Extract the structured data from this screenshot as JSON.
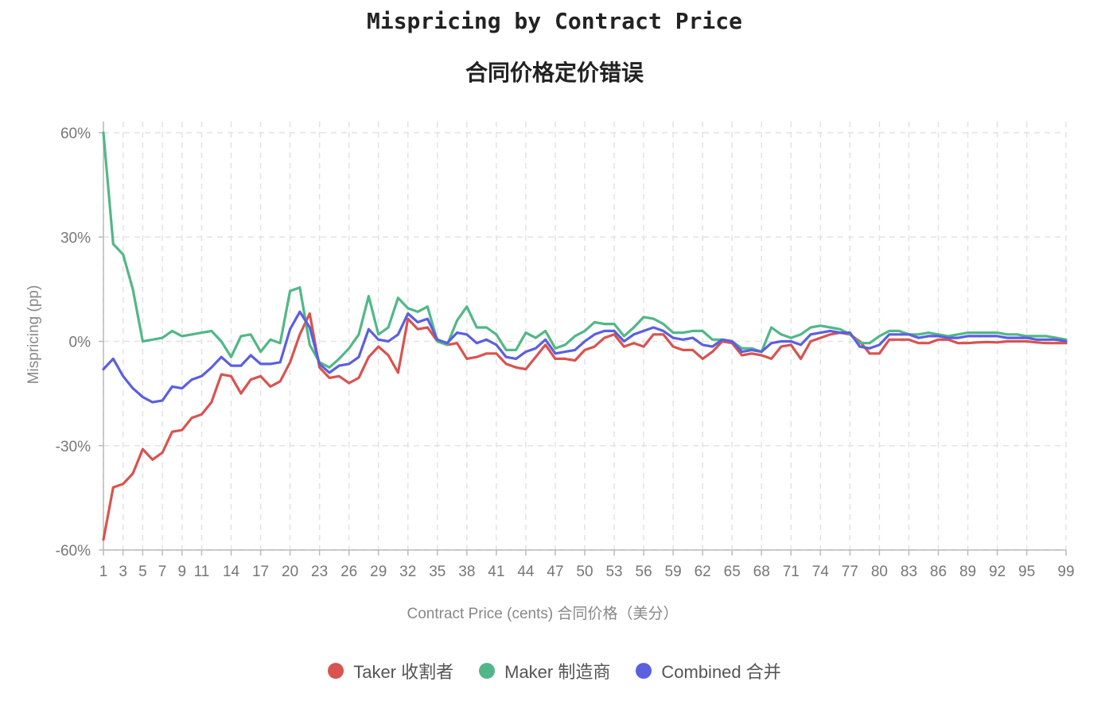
{
  "chart_data": {
    "type": "line",
    "title": "Mispricing by Contract Price",
    "subtitle": "合同价格定价错误",
    "xlabel": "Contract Price (cents) 合同价格（美分）",
    "ylabel": "Mispricing (pp)",
    "xlim": [
      1,
      99
    ],
    "ylim": [
      -60,
      60
    ],
    "yticks": [
      60,
      30,
      0,
      -30,
      -60
    ],
    "ytick_labels": [
      "60%",
      "30%",
      "0%",
      "-30%",
      "-60%"
    ],
    "xticks": [
      1,
      3,
      5,
      7,
      9,
      11,
      14,
      17,
      20,
      23,
      26,
      29,
      32,
      35,
      38,
      41,
      44,
      47,
      50,
      53,
      56,
      59,
      62,
      65,
      68,
      71,
      74,
      77,
      80,
      83,
      86,
      89,
      92,
      95,
      99
    ],
    "grid": true,
    "legend_position": "bottom-center",
    "series": [
      {
        "name": "Taker 收割者",
        "color": "#d9534f",
        "x": [
          1,
          2,
          3,
          4,
          5,
          6,
          7,
          8,
          9,
          10,
          11,
          12,
          13,
          14,
          15,
          16,
          17,
          18,
          19,
          20,
          21,
          22,
          23,
          24,
          25,
          26,
          27,
          28,
          29,
          30,
          31,
          32,
          33,
          34,
          35,
          36,
          37,
          38,
          39,
          40,
          41,
          42,
          43,
          44,
          45,
          46,
          47,
          48,
          49,
          50,
          51,
          52,
          53,
          54,
          55,
          56,
          57,
          58,
          59,
          60,
          61,
          62,
          63,
          64,
          65,
          66,
          67,
          68,
          69,
          70,
          71,
          72,
          73,
          74,
          75,
          76,
          77,
          78,
          79,
          80,
          81,
          82,
          83,
          84,
          85,
          86,
          87,
          88,
          89,
          90,
          91,
          92,
          93,
          94,
          95,
          96,
          97,
          98,
          99
        ],
        "values": [
          -57,
          -42,
          -41,
          -38,
          -31,
          -34,
          -32,
          -26,
          -25.5,
          -22,
          -21,
          -17.5,
          -9.5,
          -10,
          -15,
          -11,
          -10,
          -13,
          -11.5,
          -6,
          2,
          8,
          -7.5,
          -10.5,
          -10,
          -12,
          -10.5,
          -4.5,
          -1.5,
          -4,
          -9,
          6.5,
          3.5,
          4,
          0,
          -1,
          -0.5,
          -5,
          -4.5,
          -3.5,
          -3.5,
          -6.5,
          -7.5,
          -8,
          -4.5,
          -1,
          -5,
          -5,
          -5.5,
          -2.5,
          -1.5,
          1,
          2,
          -1.5,
          -0.5,
          -1.5,
          2,
          2,
          -1.5,
          -2.5,
          -2.5,
          -5,
          -3,
          0,
          -0.5,
          -4,
          -3.5,
          -4,
          -5,
          -1.5,
          -1,
          -5,
          0,
          1,
          2,
          2.5,
          2,
          0,
          -3.5,
          -3.5,
          0.5,
          0.5,
          0.5,
          -0.5,
          -0.5,
          0.5,
          0.5,
          -0.5,
          -0.5,
          -0.3,
          -0.2,
          -0.3,
          0,
          0,
          0,
          -0.3,
          -0.5,
          -0.5,
          -0.5
        ]
      },
      {
        "name": "Maker 制造商",
        "color": "#52b788",
        "x": [
          1,
          2,
          3,
          4,
          5,
          6,
          7,
          8,
          9,
          10,
          11,
          12,
          13,
          14,
          15,
          16,
          17,
          18,
          19,
          20,
          21,
          22,
          23,
          24,
          25,
          26,
          27,
          28,
          29,
          30,
          31,
          32,
          33,
          34,
          35,
          36,
          37,
          38,
          39,
          40,
          41,
          42,
          43,
          44,
          45,
          46,
          47,
          48,
          49,
          50,
          51,
          52,
          53,
          54,
          55,
          56,
          57,
          58,
          59,
          60,
          61,
          62,
          63,
          64,
          65,
          66,
          67,
          68,
          69,
          70,
          71,
          72,
          73,
          74,
          75,
          76,
          77,
          78,
          79,
          80,
          81,
          82,
          83,
          84,
          85,
          86,
          87,
          88,
          89,
          90,
          91,
          92,
          93,
          94,
          95,
          96,
          97,
          98,
          99
        ],
        "values": [
          60,
          28,
          25,
          15,
          0,
          0.5,
          1,
          3,
          1.5,
          2,
          2.5,
          3,
          0,
          -4.5,
          1.5,
          2,
          -3,
          0.5,
          -0.5,
          14.5,
          15.5,
          -1,
          -6,
          -7.5,
          -5,
          -2,
          2,
          13,
          2,
          4,
          12.5,
          9.5,
          8.5,
          10,
          0,
          -1,
          6,
          10,
          4,
          4,
          2,
          -2.5,
          -2.5,
          2.5,
          1,
          3,
          -2,
          -1,
          1.5,
          3,
          5.5,
          5,
          5,
          1.5,
          4,
          7,
          6.5,
          5,
          2.5,
          2.5,
          3,
          3,
          0.5,
          0.5,
          0,
          -2,
          -2,
          -3,
          4,
          2,
          1,
          2,
          4,
          4.5,
          4,
          3.5,
          2,
          -0.5,
          -0.5,
          1.5,
          3,
          3,
          2,
          2,
          2.5,
          2,
          1.5,
          2,
          2.5,
          2.5,
          2.5,
          2.5,
          2,
          2,
          1.5,
          1.5,
          1.5,
          1,
          0.5
        ]
      },
      {
        "name": "Combined 合并",
        "color": "#5b5fe0",
        "x": [
          1,
          2,
          3,
          4,
          5,
          6,
          7,
          8,
          9,
          10,
          11,
          12,
          13,
          14,
          15,
          16,
          17,
          18,
          19,
          20,
          21,
          22,
          23,
          24,
          25,
          26,
          27,
          28,
          29,
          30,
          31,
          32,
          33,
          34,
          35,
          36,
          37,
          38,
          39,
          40,
          41,
          42,
          43,
          44,
          45,
          46,
          47,
          48,
          49,
          50,
          51,
          52,
          53,
          54,
          55,
          56,
          57,
          58,
          59,
          60,
          61,
          62,
          63,
          64,
          65,
          66,
          67,
          68,
          69,
          70,
          71,
          72,
          73,
          74,
          75,
          76,
          77,
          78,
          79,
          80,
          81,
          82,
          83,
          84,
          85,
          86,
          87,
          88,
          89,
          90,
          91,
          92,
          93,
          94,
          95,
          96,
          97,
          98,
          99
        ],
        "values": [
          -8,
          -5,
          -10,
          -13.5,
          -16,
          -17.5,
          -17,
          -13,
          -13.5,
          -11,
          -10,
          -7.5,
          -4.5,
          -7,
          -7,
          -4,
          -6.5,
          -6.5,
          -6,
          3.5,
          8.5,
          4,
          -6.5,
          -9,
          -7,
          -6.5,
          -4.5,
          3.5,
          0.5,
          0,
          2,
          8,
          5.5,
          6.5,
          0.5,
          -0.5,
          2.5,
          2,
          -0.5,
          0.5,
          -1,
          -4.5,
          -5,
          -3,
          -2,
          0.5,
          -3.5,
          -3,
          -2.5,
          0,
          2,
          3,
          3,
          0,
          2,
          3,
          4,
          3,
          1,
          0.5,
          1,
          -1,
          -1.5,
          0.5,
          0,
          -3,
          -2.5,
          -3,
          -0.5,
          0,
          0,
          -1,
          2,
          2.5,
          3,
          2.5,
          2.5,
          -1.5,
          -2,
          -1,
          2,
          2,
          2,
          1,
          1.5,
          1.5,
          1,
          1,
          1.5,
          1.5,
          1.5,
          1.5,
          1,
          1,
          1,
          0.5,
          0.5,
          0.5,
          0
        ]
      }
    ]
  }
}
